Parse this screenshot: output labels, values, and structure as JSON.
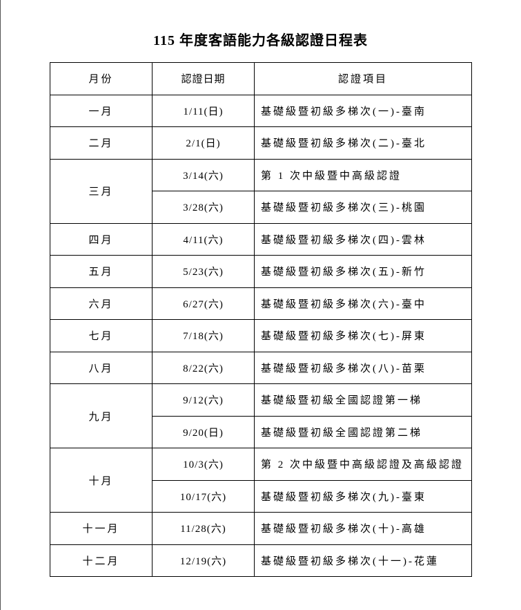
{
  "title": "115 年度客語能力各級認證日程表",
  "headers": [
    "月份",
    "認證日期",
    "認證項目"
  ],
  "rows": [
    {
      "month": "一月",
      "entries": [
        {
          "date": "1/11(日)",
          "item": "基礎級暨初級多梯次(一)-臺南"
        }
      ]
    },
    {
      "month": "二月",
      "entries": [
        {
          "date": "2/1(日)",
          "item": "基礎級暨初級多梯次(二)-臺北"
        }
      ]
    },
    {
      "month": "三月",
      "entries": [
        {
          "date": "3/14(六)",
          "item": "第 1 次中級暨中高級認證"
        },
        {
          "date": "3/28(六)",
          "item": "基礎級暨初級多梯次(三)-桃園"
        }
      ]
    },
    {
      "month": "四月",
      "entries": [
        {
          "date": "4/11(六)",
          "item": "基礎級暨初級多梯次(四)-雲林"
        }
      ]
    },
    {
      "month": "五月",
      "entries": [
        {
          "date": "5/23(六)",
          "item": "基礎級暨初級多梯次(五)-新竹"
        }
      ]
    },
    {
      "month": "六月",
      "entries": [
        {
          "date": "6/27(六)",
          "item": "基礎級暨初級多梯次(六)-臺中"
        }
      ]
    },
    {
      "month": "七月",
      "entries": [
        {
          "date": "7/18(六)",
          "item": "基礎級暨初級多梯次(七)-屏東"
        }
      ]
    },
    {
      "month": "八月",
      "entries": [
        {
          "date": "8/22(六)",
          "item": "基礎級暨初級多梯次(八)-苗栗"
        }
      ]
    },
    {
      "month": "九月",
      "entries": [
        {
          "date": "9/12(六)",
          "item": "基礎級暨初級全國認證第一梯"
        },
        {
          "date": "9/20(日)",
          "item": "基礎級暨初級全國認證第二梯"
        }
      ]
    },
    {
      "month": "十月",
      "entries": [
        {
          "date": "10/3(六)",
          "item": "第 2 次中級暨中高級認證及高級認證"
        },
        {
          "date": "10/17(六)",
          "item": "基礎級暨初級多梯次(九)-臺東"
        }
      ]
    },
    {
      "month": "十一月",
      "entries": [
        {
          "date": "11/28(六)",
          "item": "基礎級暨初級多梯次(十)-高雄"
        }
      ]
    },
    {
      "month": "十二月",
      "entries": [
        {
          "date": "12/19(六)",
          "item": "基礎級暨初級多梯次(十一)-花蓮"
        }
      ]
    }
  ]
}
